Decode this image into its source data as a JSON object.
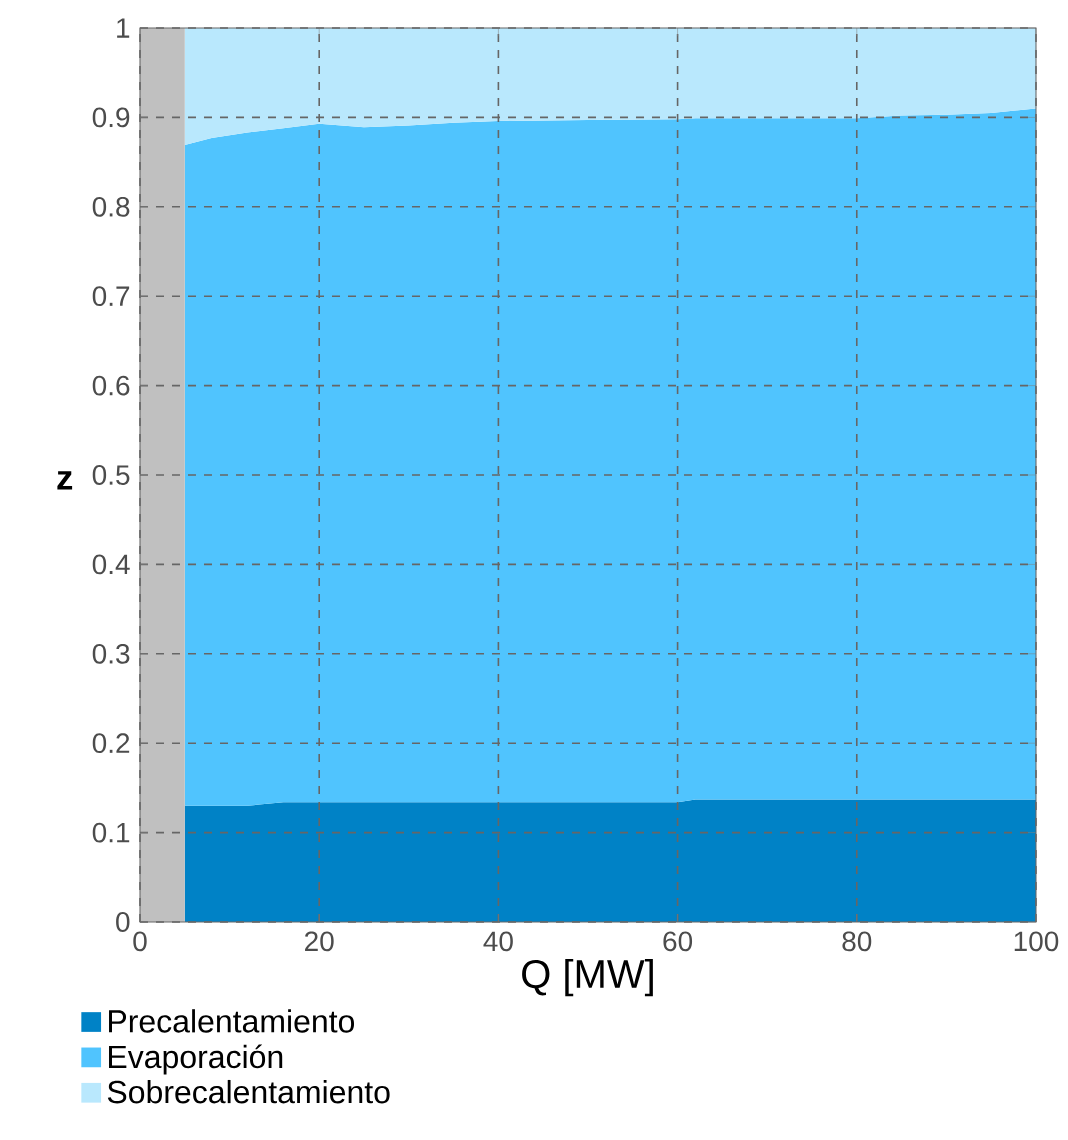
{
  "chart_data": {
    "type": "area",
    "stacked": true,
    "xlabel": "Q [MW]",
    "ylabel": "z",
    "x": [
      5,
      8,
      12,
      16,
      20,
      25,
      30,
      35,
      40,
      50,
      60,
      62,
      80,
      85,
      90,
      95,
      100
    ],
    "series": [
      {
        "name": "Precalentamiento",
        "color": "#0082c6",
        "values": [
          0.13,
          0.13,
          0.13,
          0.134,
          0.134,
          0.134,
          0.134,
          0.134,
          0.134,
          0.134,
          0.134,
          0.137,
          0.137,
          0.137,
          0.137,
          0.137,
          0.137
        ]
      },
      {
        "name": "Evaporación",
        "color": "#50c4fe",
        "values": [
          0.739,
          0.747,
          0.753,
          0.754,
          0.759,
          0.755,
          0.757,
          0.76,
          0.762,
          0.763,
          0.764,
          0.762,
          0.762,
          0.765,
          0.766,
          0.768,
          0.773
        ]
      },
      {
        "name": "Sobrecalentamiento",
        "color": "#b9e8fd",
        "values": [
          0.131,
          0.123,
          0.117,
          0.112,
          0.107,
          0.111,
          0.109,
          0.106,
          0.104,
          0.103,
          0.102,
          0.101,
          0.101,
          0.098,
          0.097,
          0.095,
          0.09
        ]
      }
    ],
    "xlim": [
      0,
      100
    ],
    "xticks": [
      0,
      20,
      40,
      60,
      80,
      100
    ],
    "ylim": [
      0,
      1
    ],
    "yticks": [
      0,
      0.1,
      0.2,
      0.3,
      0.4,
      0.5,
      0.6,
      0.7,
      0.8,
      0.9,
      1
    ],
    "bands": [
      {
        "axis": "x",
        "from": 0,
        "to": 5,
        "color": "#c0c0c0"
      }
    ],
    "grid": true,
    "legend": "bottom left"
  }
}
